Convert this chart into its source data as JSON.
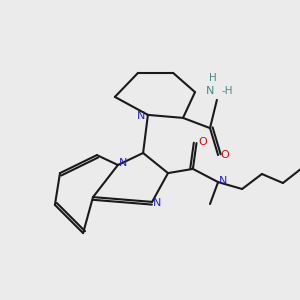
{
  "bg_color": "#ebebeb",
  "bond_color": "#1a1a1a",
  "N_color": "#2222cc",
  "O_color": "#cc1111",
  "NH_color": "#4a8888",
  "lw": 1.5,
  "dpi": 100,
  "figsize": [
    3.0,
    3.0
  ],
  "xlim": [
    0,
    10
  ],
  "ylim": [
    0,
    10
  ]
}
